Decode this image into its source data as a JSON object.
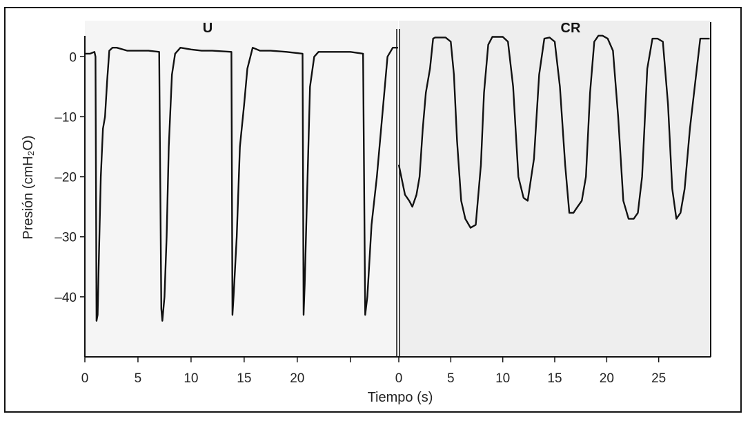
{
  "chart_data": {
    "type": "line",
    "ylabel": "Presión (cmH₂O)",
    "xlabel": "Tiempo (s)",
    "ylim": [
      -50,
      6
    ],
    "yticks": [
      0,
      -10,
      -20,
      -30,
      -40
    ],
    "ytick_labels": [
      "0",
      "–10",
      "–20",
      "–30",
      "–40"
    ],
    "panels": [
      {
        "name": "U",
        "xlim": [
          0,
          29.5
        ],
        "xticks": [
          0,
          5,
          10,
          15,
          20
        ],
        "xtick_labels": [
          "0",
          "5",
          "10",
          "15",
          "20"
        ],
        "minor_xticks": [
          25
        ],
        "series": [
          {
            "x": [
              0,
              0.5,
              0.9,
              1.0,
              1.1,
              1.2,
              1.3,
              1.5,
              1.7,
              1.9,
              2.1,
              2.3,
              2.6,
              3.0,
              4,
              5,
              6,
              7,
              7.2,
              7.3,
              7.5,
              7.7,
              7.9,
              8.2,
              8.5,
              9,
              10,
              11,
              12,
              13.8,
              13.9,
              14.0,
              14.3,
              14.6,
              15,
              15.3,
              15.8,
              16.5,
              17.5,
              19,
              20.5,
              20.6,
              20.7,
              20.9,
              21.2,
              21.6,
              22,
              23,
              25,
              26.2,
              26.4,
              26.6,
              27,
              27.5,
              28,
              28.5,
              29,
              29.5
            ],
            "y": [
              0.5,
              0.5,
              0.8,
              0,
              -44,
              -43,
              -35,
              -20,
              -12,
              -10,
              -4,
              1,
              1.5,
              1.5,
              1,
              1,
              1,
              0.8,
              -42,
              -44,
              -40,
              -30,
              -15,
              -3,
              0.5,
              1.5,
              1.2,
              1,
              1,
              0.8,
              -43,
              -40,
              -30,
              -15,
              -8,
              -2,
              1.5,
              1,
              1,
              0.8,
              0.5,
              -43,
              -38,
              -25,
              -5,
              0,
              0.8,
              0.8,
              0.8,
              0.5,
              -43,
              -40,
              -28,
              -20,
              -10,
              0,
              1.5,
              1.5
            ]
          }
        ]
      },
      {
        "name": "CR",
        "xlim": [
          0,
          30
        ],
        "xticks": [
          0,
          5,
          10,
          15,
          20,
          25
        ],
        "xtick_labels": [
          "0",
          "5",
          "10",
          "15",
          "20",
          "25"
        ],
        "series": [
          {
            "x": [
              0,
              0.6,
              1.0,
              1.3,
              1.7,
              2.0,
              2.3,
              2.6,
              3.0,
              3.3,
              3.5,
              4,
              4.5,
              5,
              5.3,
              5.6,
              6.0,
              6.4,
              6.9,
              7.4,
              7.9,
              8.2,
              8.6,
              9.0,
              9.5,
              10,
              10.5,
              11,
              11.5,
              12,
              12.4,
              13,
              13.5,
              14,
              14.5,
              15,
              15.5,
              16,
              16.4,
              16.8,
              17.2,
              17.6,
              18.0,
              18.4,
              18.8,
              19.2,
              19.6,
              20.1,
              20.6,
              21.1,
              21.6,
              22.1,
              22.6,
              23.0,
              23.4,
              23.9,
              24.4,
              24.9,
              25.4,
              25.9,
              26.3,
              26.7,
              27.1,
              27.5,
              28,
              29,
              29.9
            ],
            "y": [
              -18,
              -23,
              -24,
              -25,
              -23,
              -20,
              -12,
              -6,
              -2,
              3,
              3.2,
              3.2,
              3.2,
              2.5,
              -3,
              -14,
              -24,
              -27,
              -28.5,
              -28,
              -18,
              -6,
              2,
              3.3,
              3.3,
              3.3,
              2.5,
              -5,
              -20,
              -23.5,
              -24,
              -17,
              -3,
              3,
              3.2,
              2.5,
              -5,
              -18,
              -26,
              -26,
              -25,
              -24,
              -20,
              -6,
              2.5,
              3.5,
              3.5,
              3,
              1,
              -10,
              -24,
              -27,
              -27,
              -26,
              -20,
              -2,
              3,
              3,
              2.5,
              -8,
              -22,
              -27,
              -26,
              -22,
              -12,
              3,
              3
            ]
          }
        ]
      }
    ]
  }
}
